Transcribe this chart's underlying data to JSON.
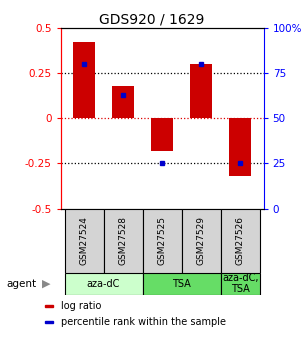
{
  "title": "GDS920 / 1629",
  "samples": [
    "GSM27524",
    "GSM27528",
    "GSM27525",
    "GSM27529",
    "GSM27526"
  ],
  "log_ratios": [
    0.42,
    0.18,
    -0.18,
    0.3,
    -0.32
  ],
  "percentile_values": [
    80,
    63,
    25,
    80,
    25
  ],
  "ylim": [
    -0.5,
    0.5
  ],
  "y2lim": [
    0,
    100
  ],
  "yticks": [
    -0.5,
    -0.25,
    0.0,
    0.25,
    0.5
  ],
  "y2ticks": [
    0,
    25,
    50,
    75,
    100
  ],
  "hlines": [
    -0.25,
    0.0,
    0.25
  ],
  "hline_colors": {
    "0.0": "#dd0000",
    "-0.25": "#000000",
    "0.25": "#000000"
  },
  "hline_styles": {
    "0.0": ":",
    "-0.25": ":",
    "0.25": ":"
  },
  "bar_color": "#cc0000",
  "dot_color": "#0000cc",
  "agent_groups": [
    {
      "label": "aza-dC",
      "span": [
        0,
        2
      ],
      "color": "#ccffcc"
    },
    {
      "label": "TSA",
      "span": [
        2,
        4
      ],
      "color": "#66dd66"
    },
    {
      "label": "aza-dC,\nTSA",
      "span": [
        4,
        5
      ],
      "color": "#66dd66"
    }
  ],
  "legend_items": [
    {
      "color": "#cc0000",
      "label": "log ratio"
    },
    {
      "color": "#0000cc",
      "label": "percentile rank within the sample"
    }
  ],
  "bar_width": 0.55,
  "title_fontsize": 10,
  "tick_fontsize": 7.5,
  "sample_fontsize": 6.5,
  "agent_fontsize": 7.5,
  "legend_fontsize": 7
}
